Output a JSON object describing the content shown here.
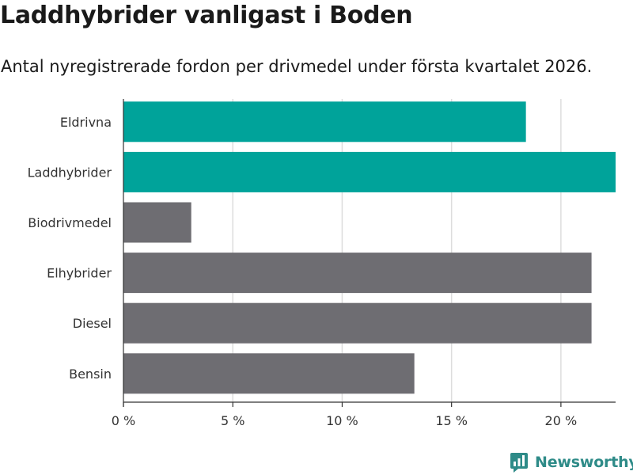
{
  "header": {
    "title": "Laddhybrider vanligast i Boden",
    "subtitle": "Antal nyregistrerade fordon per drivmedel under första kvartalet 2026."
  },
  "brand": {
    "name": "Newsworthy",
    "icon": "newsworthy-logo-icon",
    "color": "#2e8b88"
  },
  "colors": {
    "highlight": "#00a39a",
    "default": "#6e6d72",
    "grid": "#dddddd",
    "axis": "#333333"
  },
  "chart_data": {
    "type": "bar",
    "orientation": "horizontal",
    "title": "Laddhybrider vanligast i Boden",
    "subtitle": "Antal nyregistrerade fordon per drivmedel under första kvartalet 2026.",
    "xlabel": "",
    "ylabel": "",
    "xlim": [
      0,
      22.5
    ],
    "grid": true,
    "categories": [
      "Eldrivna",
      "Laddhybrider",
      "Biodrivmedel",
      "Elhybrider",
      "Diesel",
      "Bensin"
    ],
    "values": [
      18.4,
      22.5,
      3.1,
      21.4,
      21.4,
      13.3
    ],
    "highlighted": [
      true,
      true,
      false,
      false,
      false,
      false
    ],
    "ticks": [
      0,
      5,
      10,
      15,
      20
    ],
    "tick_labels": [
      "0 %",
      "5 %",
      "10 %",
      "15 %",
      "20 %"
    ]
  }
}
